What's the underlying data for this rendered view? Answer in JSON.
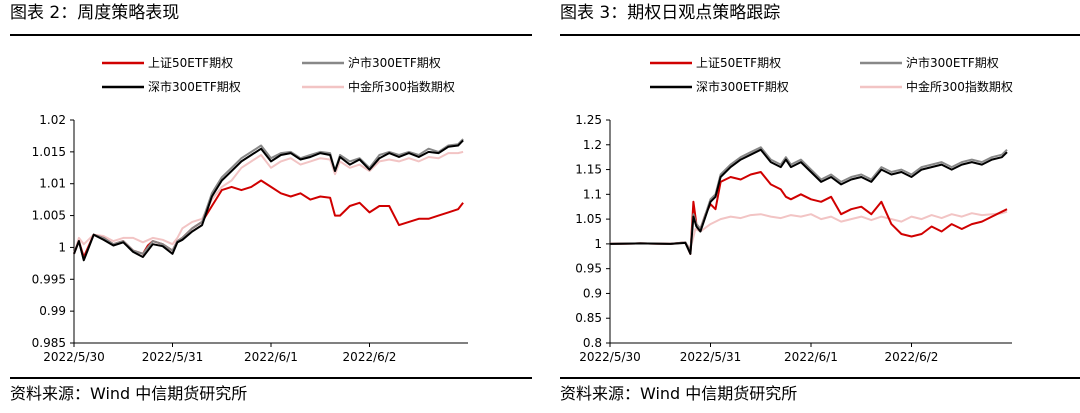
{
  "panels": [
    {
      "title": "图表 2：周度策略表现",
      "source": "资料来源：Wind  中信期货研究所",
      "chart_data": {
        "type": "line",
        "title": "",
        "xlabel": "",
        "ylabel": "",
        "ylim": [
          0.985,
          1.02
        ],
        "yticks": [
          0.985,
          0.99,
          0.995,
          1,
          1.005,
          1.01,
          1.015,
          1.02
        ],
        "ytick_labels": [
          "0.985",
          "0.99",
          "0.995",
          "1",
          "1.005",
          "1.01",
          "1.015",
          "1.02"
        ],
        "xticks": [
          "2022/5/30",
          "2022/5/31",
          "2022/6/1",
          "2022/6/2"
        ],
        "xlim": [
          0,
          4
        ],
        "legend_position": "top",
        "grid": false,
        "series": [
          {
            "name": "上证50ETF期权",
            "color": "#d00000",
            "x": [
              0,
              0.05,
              0.1,
              0.2,
              0.3,
              0.4,
              0.5,
              0.6,
              0.7,
              0.75,
              0.8,
              0.9,
              1.0,
              1.05,
              1.1,
              1.2,
              1.3,
              1.4,
              1.5,
              1.6,
              1.7,
              1.8,
              1.9,
              2.0,
              2.1,
              2.2,
              2.3,
              2.4,
              2.5,
              2.6,
              2.65,
              2.7,
              2.8,
              2.9,
              3.0,
              3.1,
              3.2,
              3.3,
              3.4,
              3.5,
              3.6,
              3.7,
              3.8,
              3.9,
              3.95
            ],
            "y": [
              0.999,
              1.001,
              0.9985,
              1.002,
              1.0015,
              1.0005,
              1.001,
              0.9995,
              0.999,
              1.0003,
              1.001,
              1.0005,
              0.9995,
              1.001,
              1.0015,
              1.003,
              1.004,
              1.0065,
              1.009,
              1.0095,
              1.009,
              1.0095,
              1.0105,
              1.0095,
              1.0085,
              1.008,
              1.0085,
              1.0075,
              1.008,
              1.0078,
              1.005,
              1.005,
              1.0065,
              1.007,
              1.0055,
              1.0065,
              1.0065,
              1.0035,
              1.004,
              1.0045,
              1.0045,
              1.005,
              1.0055,
              1.006,
              1.007
            ]
          },
          {
            "name": "沪市300ETF期权",
            "color": "#888888",
            "x": [
              0,
              0.05,
              0.1,
              0.2,
              0.3,
              0.4,
              0.5,
              0.6,
              0.7,
              0.8,
              0.9,
              1.0,
              1.05,
              1.1,
              1.2,
              1.3,
              1.4,
              1.5,
              1.6,
              1.7,
              1.8,
              1.9,
              2.0,
              2.1,
              2.2,
              2.3,
              2.4,
              2.5,
              2.6,
              2.65,
              2.7,
              2.8,
              2.9,
              3.0,
              3.1,
              3.2,
              3.3,
              3.4,
              3.5,
              3.6,
              3.7,
              3.8,
              3.9,
              3.95
            ],
            "y": [
              0.999,
              1.001,
              0.998,
              1.002,
              1.0015,
              1.0005,
              1.001,
              0.9995,
              0.999,
              1.001,
              1.0005,
              0.9995,
              1.001,
              1.0015,
              1.003,
              1.004,
              1.0085,
              1.011,
              1.0125,
              1.014,
              1.015,
              1.016,
              1.014,
              1.0148,
              1.015,
              1.014,
              1.0145,
              1.015,
              1.0148,
              1.012,
              1.0145,
              1.0135,
              1.014,
              1.0125,
              1.0145,
              1.015,
              1.0145,
              1.015,
              1.0145,
              1.0155,
              1.015,
              1.016,
              1.0162,
              1.017
            ]
          },
          {
            "name": "深市300ETF期权",
            "color": "#000000",
            "x": [
              0,
              0.05,
              0.1,
              0.2,
              0.3,
              0.4,
              0.5,
              0.6,
              0.7,
              0.8,
              0.9,
              1.0,
              1.05,
              1.1,
              1.2,
              1.3,
              1.4,
              1.5,
              1.6,
              1.7,
              1.8,
              1.9,
              2.0,
              2.1,
              2.2,
              2.3,
              2.4,
              2.5,
              2.6,
              2.65,
              2.7,
              2.8,
              2.9,
              3.0,
              3.1,
              3.2,
              3.3,
              3.4,
              3.5,
              3.6,
              3.7,
              3.8,
              3.9,
              3.95
            ],
            "y": [
              0.999,
              1.001,
              0.998,
              1.002,
              1.0012,
              1.0003,
              1.0008,
              0.9993,
              0.9985,
              1.0005,
              1.0002,
              0.999,
              1.0008,
              1.0012,
              1.0025,
              1.0035,
              1.008,
              1.0105,
              1.012,
              1.0135,
              1.0145,
              1.0155,
              1.0135,
              1.0145,
              1.0148,
              1.0138,
              1.0142,
              1.0148,
              1.0145,
              1.012,
              1.0142,
              1.013,
              1.0138,
              1.0122,
              1.014,
              1.0148,
              1.0142,
              1.0148,
              1.0142,
              1.015,
              1.0148,
              1.0158,
              1.016,
              1.0168
            ]
          },
          {
            "name": "中金所300指数期权",
            "color": "#f2c4c4",
            "x": [
              0,
              0.05,
              0.1,
              0.2,
              0.3,
              0.4,
              0.5,
              0.6,
              0.7,
              0.8,
              0.9,
              1.0,
              1.05,
              1.1,
              1.2,
              1.3,
              1.4,
              1.5,
              1.6,
              1.7,
              1.8,
              1.9,
              2.0,
              2.1,
              2.2,
              2.3,
              2.4,
              2.5,
              2.6,
              2.65,
              2.7,
              2.8,
              2.9,
              3.0,
              3.1,
              3.2,
              3.3,
              3.4,
              3.5,
              3.6,
              3.7,
              3.8,
              3.9,
              3.95
            ],
            "y": [
              0.999,
              1.0015,
              1.0005,
              1.002,
              1.0018,
              1.001,
              1.0015,
              1.0015,
              1.0008,
              1.0015,
              1.0012,
              1.0005,
              1.0015,
              1.003,
              1.004,
              1.0045,
              1.0075,
              1.0095,
              1.0105,
              1.0125,
              1.0135,
              1.0145,
              1.0125,
              1.0135,
              1.014,
              1.013,
              1.0135,
              1.014,
              1.0138,
              1.0115,
              1.0135,
              1.0125,
              1.013,
              1.012,
              1.0135,
              1.0138,
              1.0135,
              1.014,
              1.0135,
              1.0142,
              1.014,
              1.0148,
              1.0148,
              1.015
            ]
          }
        ]
      }
    },
    {
      "title": "图表 3：期权日观点策略跟踪",
      "source": "资料来源：Wind  中信期货研究所",
      "chart_data": {
        "type": "line",
        "title": "",
        "xlabel": "",
        "ylabel": "",
        "ylim": [
          0.8,
          1.25
        ],
        "yticks": [
          0.8,
          0.85,
          0.9,
          0.95,
          1,
          1.05,
          1.1,
          1.15,
          1.2,
          1.25
        ],
        "ytick_labels": [
          "0.8",
          "0.85",
          "0.9",
          "0.95",
          "1",
          "1.05",
          "1.1",
          "1.15",
          "1.2",
          "1.25"
        ],
        "xticks": [
          "2022/5/30",
          "2022/5/31",
          "2022/6/1",
          "2022/6/2"
        ],
        "xlim": [
          0,
          4
        ],
        "legend_position": "top",
        "grid": false,
        "series": [
          {
            "name": "上证50ETF期权",
            "color": "#d00000",
            "x": [
              0,
              0.3,
              0.6,
              0.75,
              0.8,
              0.83,
              0.86,
              0.9,
              0.95,
              1.0,
              1.05,
              1.1,
              1.2,
              1.3,
              1.4,
              1.5,
              1.6,
              1.7,
              1.75,
              1.8,
              1.9,
              2.0,
              2.1,
              2.2,
              2.3,
              2.4,
              2.5,
              2.6,
              2.7,
              2.8,
              2.9,
              3.0,
              3.1,
              3.2,
              3.3,
              3.4,
              3.5,
              3.6,
              3.7,
              3.8,
              3.9,
              3.95
            ],
            "y": [
              1.0,
              1.001,
              1.0,
              1.003,
              0.98,
              1.085,
              1.04,
              1.03,
              1.06,
              1.08,
              1.07,
              1.125,
              1.135,
              1.13,
              1.14,
              1.145,
              1.12,
              1.11,
              1.095,
              1.09,
              1.1,
              1.09,
              1.085,
              1.095,
              1.06,
              1.07,
              1.075,
              1.06,
              1.085,
              1.04,
              1.02,
              1.015,
              1.02,
              1.035,
              1.025,
              1.04,
              1.03,
              1.04,
              1.045,
              1.055,
              1.065,
              1.07
            ]
          },
          {
            "name": "沪市300ETF期权",
            "color": "#888888",
            "x": [
              0,
              0.3,
              0.6,
              0.75,
              0.8,
              0.83,
              0.86,
              0.9,
              0.95,
              1.0,
              1.05,
              1.1,
              1.2,
              1.3,
              1.4,
              1.5,
              1.6,
              1.7,
              1.75,
              1.8,
              1.9,
              2.0,
              2.1,
              2.2,
              2.3,
              2.4,
              2.5,
              2.6,
              2.7,
              2.8,
              2.9,
              3.0,
              3.1,
              3.2,
              3.3,
              3.4,
              3.5,
              3.6,
              3.7,
              3.8,
              3.9,
              3.95
            ],
            "y": [
              1.0,
              1.001,
              1.0,
              1.003,
              0.985,
              1.06,
              1.04,
              1.03,
              1.06,
              1.09,
              1.1,
              1.14,
              1.16,
              1.175,
              1.185,
              1.195,
              1.17,
              1.16,
              1.175,
              1.16,
              1.17,
              1.15,
              1.13,
              1.14,
              1.125,
              1.135,
              1.14,
              1.13,
              1.155,
              1.145,
              1.15,
              1.14,
              1.155,
              1.16,
              1.165,
              1.155,
              1.165,
              1.17,
              1.165,
              1.175,
              1.18,
              1.19
            ]
          },
          {
            "name": "深市300ETF期权",
            "color": "#000000",
            "x": [
              0,
              0.3,
              0.6,
              0.75,
              0.8,
              0.83,
              0.86,
              0.9,
              0.95,
              1.0,
              1.05,
              1.1,
              1.2,
              1.3,
              1.4,
              1.5,
              1.6,
              1.7,
              1.75,
              1.8,
              1.9,
              2.0,
              2.1,
              2.2,
              2.3,
              2.4,
              2.5,
              2.6,
              2.7,
              2.8,
              2.9,
              3.0,
              3.1,
              3.2,
              3.3,
              3.4,
              3.5,
              3.6,
              3.7,
              3.8,
              3.9,
              3.95
            ],
            "y": [
              1.0,
              1.001,
              1.0,
              1.002,
              0.98,
              1.055,
              1.035,
              1.025,
              1.055,
              1.085,
              1.095,
              1.135,
              1.155,
              1.17,
              1.18,
              1.19,
              1.165,
              1.155,
              1.17,
              1.155,
              1.165,
              1.145,
              1.125,
              1.135,
              1.12,
              1.13,
              1.135,
              1.125,
              1.15,
              1.14,
              1.145,
              1.135,
              1.15,
              1.155,
              1.16,
              1.15,
              1.16,
              1.165,
              1.16,
              1.17,
              1.175,
              1.185
            ]
          },
          {
            "name": "中金所300指数期权",
            "color": "#f2c4c4",
            "x": [
              0,
              0.3,
              0.6,
              0.75,
              0.8,
              0.85,
              0.9,
              1.0,
              1.1,
              1.2,
              1.3,
              1.4,
              1.5,
              1.6,
              1.7,
              1.8,
              1.9,
              2.0,
              2.1,
              2.2,
              2.3,
              2.4,
              2.5,
              2.6,
              2.7,
              2.8,
              2.9,
              3.0,
              3.1,
              3.2,
              3.3,
              3.4,
              3.5,
              3.6,
              3.7,
              3.8,
              3.9,
              3.95
            ],
            "y": [
              1.0,
              1.001,
              1.0,
              1.002,
              0.99,
              1.03,
              1.025,
              1.04,
              1.05,
              1.055,
              1.052,
              1.058,
              1.06,
              1.055,
              1.052,
              1.058,
              1.055,
              1.06,
              1.05,
              1.055,
              1.045,
              1.05,
              1.055,
              1.048,
              1.055,
              1.05,
              1.045,
              1.055,
              1.05,
              1.058,
              1.052,
              1.06,
              1.055,
              1.062,
              1.058,
              1.06,
              1.062,
              1.065
            ]
          }
        ]
      }
    }
  ]
}
